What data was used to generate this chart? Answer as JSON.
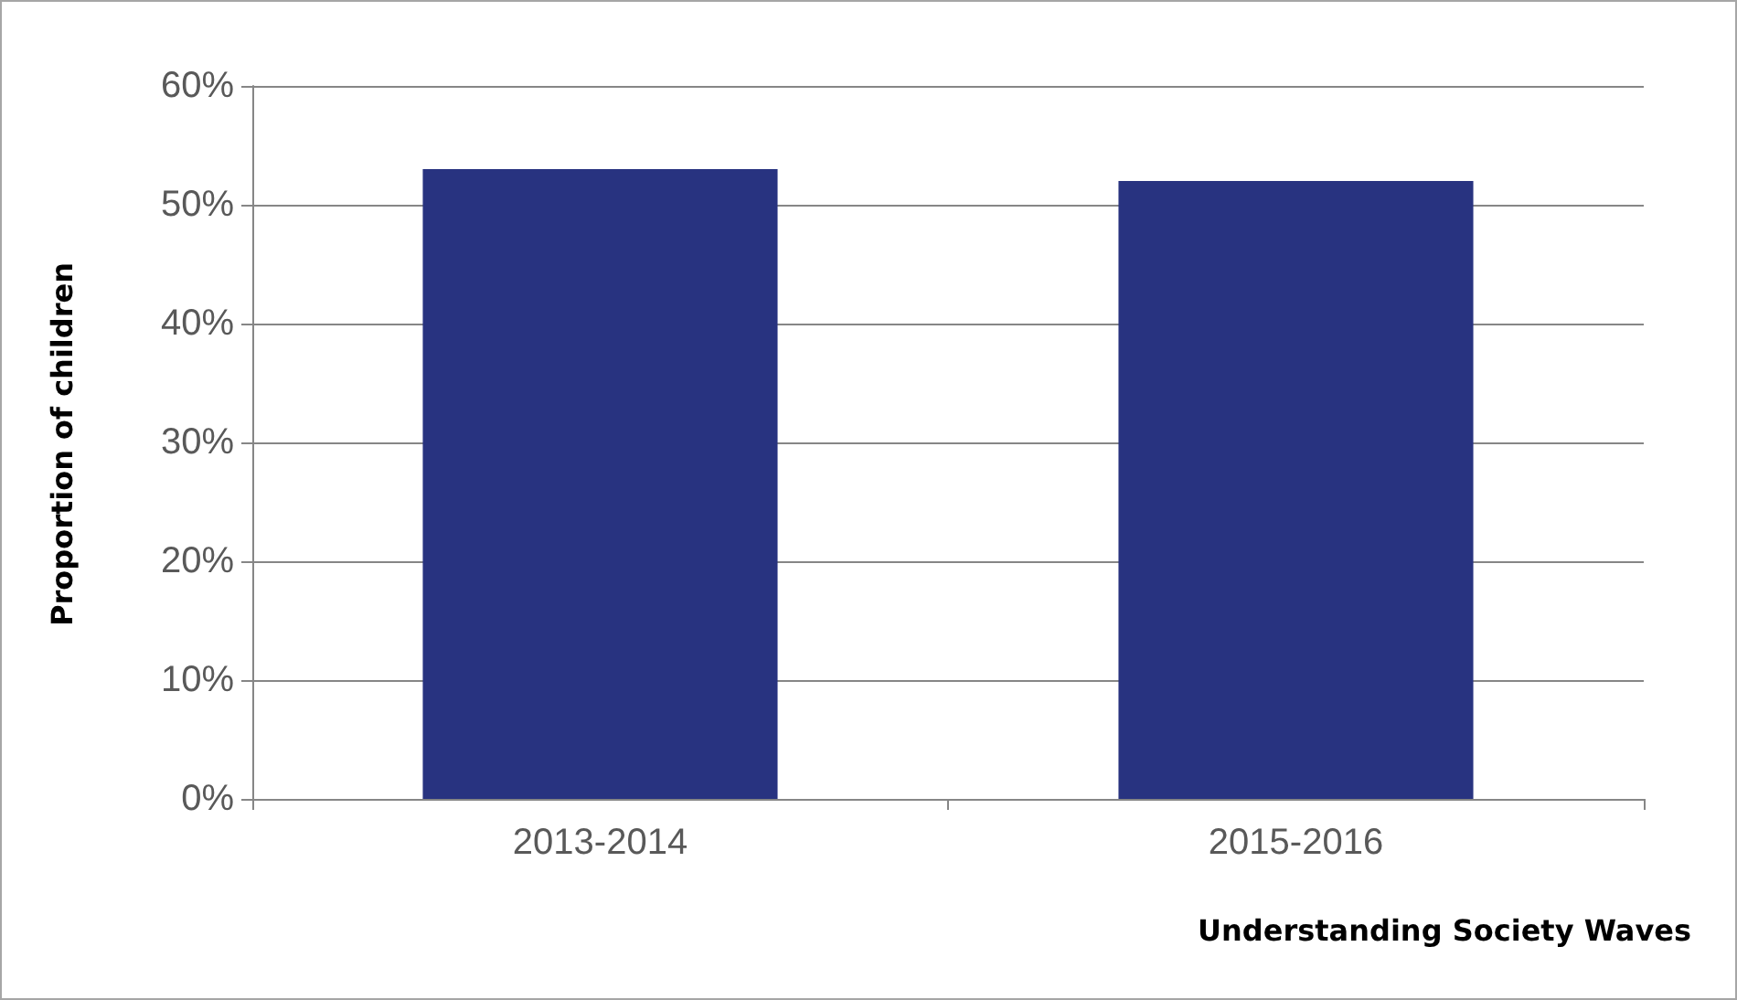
{
  "chart_data": {
    "type": "bar",
    "xlabel": "Understanding Society Waves",
    "ylabel": "Proportion of children",
    "categories": [
      "2013-2014",
      "2015-2016"
    ],
    "values": [
      53,
      52
    ],
    "color": "#283380",
    "ylim": [
      0,
      60
    ],
    "yticks": [
      {
        "value": 0,
        "label": "0%"
      },
      {
        "value": 10,
        "label": "10%"
      },
      {
        "value": 20,
        "label": "20%"
      },
      {
        "value": 30,
        "label": "30%"
      },
      {
        "value": 40,
        "label": "40%"
      },
      {
        "value": 50,
        "label": "50%"
      },
      {
        "value": 60,
        "label": "60%"
      }
    ],
    "grid": "y"
  }
}
